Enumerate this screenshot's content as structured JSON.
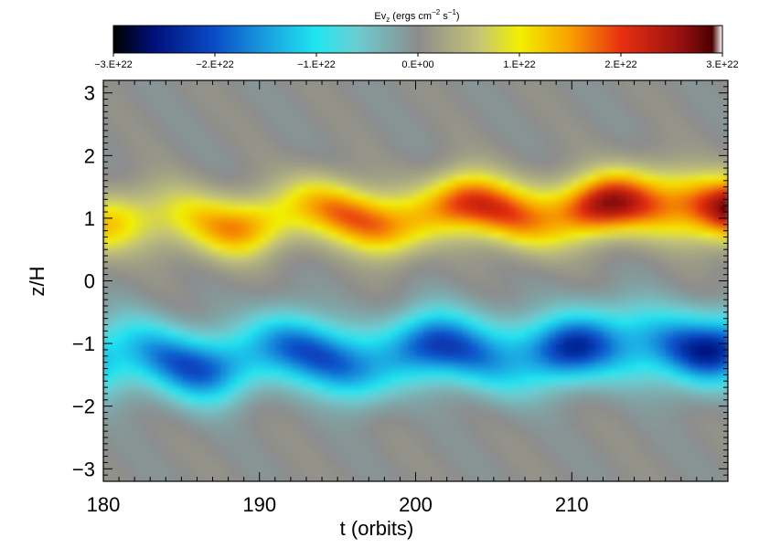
{
  "chart_data": {
    "type": "heatmap",
    "title": "",
    "xlabel": "t (orbits)",
    "ylabel": "z/H",
    "xlim": [
      180,
      220
    ],
    "ylim": [
      -3.2,
      3.2
    ],
    "x_ticks": [
      180,
      190,
      200,
      210
    ],
    "y_ticks": [
      3,
      2,
      1,
      0,
      -1,
      -2,
      -3
    ],
    "x_tick_labels": [
      "180",
      "190",
      "200",
      "210"
    ],
    "y_tick_labels": [
      "3",
      "2",
      "1",
      "0",
      "−1",
      "−2",
      "−3"
    ],
    "colorbar": {
      "label_main": "Ev",
      "label_sub": "z",
      "label_units_pre": " (ergs cm",
      "label_exp1": "−2",
      "label_mid": " s",
      "label_exp2": "−1",
      "label_units_post": ")",
      "range": [
        -3e+22,
        3e+22
      ],
      "tick_values": [
        -3e+22,
        -2e+22,
        -1e+22,
        0,
        1e+22,
        2e+22,
        3e+22
      ],
      "tick_labels": [
        "−3.E+22",
        "−2.E+22",
        "−1.E+22",
        "0.E+00",
        "1.E+22",
        "2.E+22",
        "3.E+22"
      ],
      "color_stops": [
        {
          "v": -3e+22,
          "color": "#000000"
        },
        {
          "v": -2.6e+22,
          "color": "#00107a"
        },
        {
          "v": -2e+22,
          "color": "#0a4cc8"
        },
        {
          "v": -1.5e+22,
          "color": "#1a9ee0"
        },
        {
          "v": -1e+22,
          "color": "#20e6f0"
        },
        {
          "v": -6e+21,
          "color": "#6ccdd2"
        },
        {
          "v": 0,
          "color": "#8c8c8c"
        },
        {
          "v": 6e+21,
          "color": "#c4c478"
        },
        {
          "v": 1e+22,
          "color": "#f2f000"
        },
        {
          "v": 1.5e+22,
          "color": "#f8a000"
        },
        {
          "v": 2e+22,
          "color": "#e83010"
        },
        {
          "v": 2.6e+22,
          "color": "#961010"
        },
        {
          "v": 2.9e+22,
          "color": "#4a0000"
        },
        {
          "v": 3e+22,
          "color": "#ffffff"
        }
      ]
    },
    "data_description_bands": [
      {
        "name": "upper positive band",
        "z_center": 0.9,
        "z_width": 0.8,
        "value_start": 1e+22,
        "value_end": 2.4e+22
      },
      {
        "name": "lower negative band",
        "z_center": -1.3,
        "z_width": 0.9,
        "value_start": -1.6e+22,
        "value_end": -2e+22
      }
    ]
  }
}
